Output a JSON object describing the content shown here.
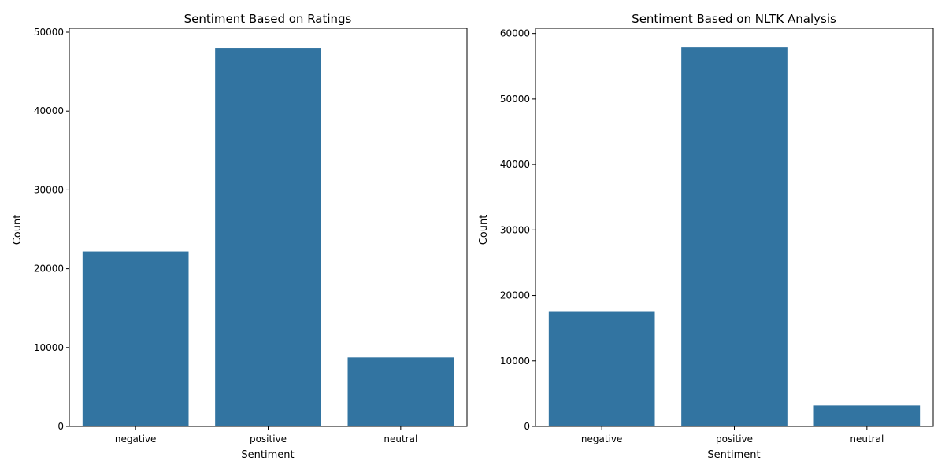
{
  "chart_data": [
    {
      "type": "bar",
      "title": "Sentiment Based on Ratings",
      "xlabel": "Sentiment",
      "ylabel": "Count",
      "categories": [
        "negative",
        "positive",
        "neutral"
      ],
      "values": [
        22200,
        48000,
        8750
      ],
      "ylim": [
        0,
        50500
      ],
      "yticks": [
        0,
        10000,
        20000,
        30000,
        40000,
        50000
      ],
      "bar_color": "#3274a1",
      "grid": false
    },
    {
      "type": "bar",
      "title": "Sentiment Based on NLTK Analysis",
      "xlabel": "Sentiment",
      "ylabel": "Count",
      "categories": [
        "negative",
        "positive",
        "neutral"
      ],
      "values": [
        17600,
        57900,
        3200
      ],
      "ylim": [
        0,
        60800
      ],
      "yticks": [
        0,
        10000,
        20000,
        30000,
        40000,
        50000,
        60000
      ],
      "bar_color": "#3274a1",
      "grid": false
    }
  ]
}
